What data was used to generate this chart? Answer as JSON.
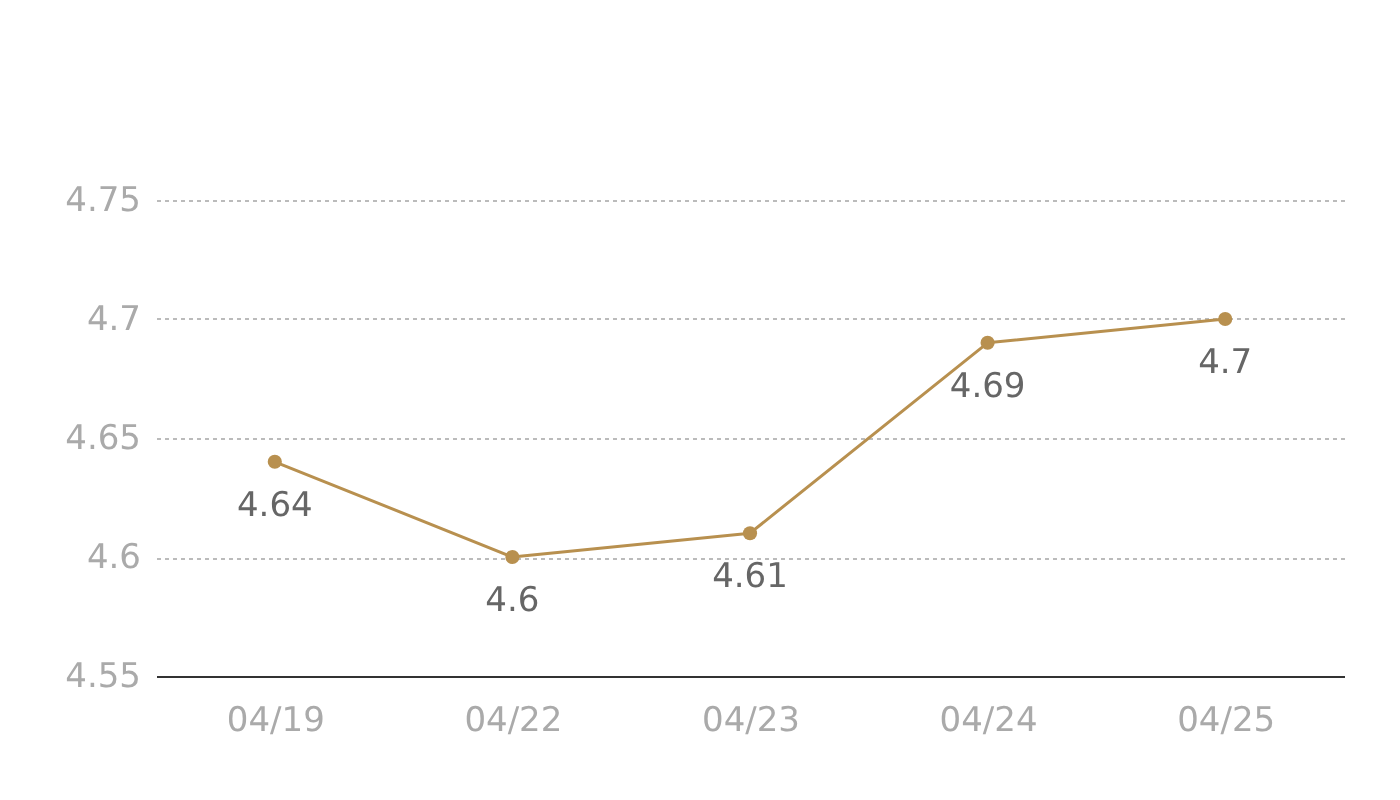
{
  "chart_data": {
    "type": "line",
    "categories": [
      "04/19",
      "04/22",
      "04/23",
      "04/24",
      "04/25"
    ],
    "series": [
      {
        "color": "#b8904f",
        "values": [
          4.64,
          4.6,
          4.61,
          4.69,
          4.7
        ]
      }
    ],
    "ylim": [
      4.55,
      4.75
    ],
    "yticks": [
      4.55,
      4.6,
      4.65,
      4.7,
      4.75
    ],
    "grid": "y",
    "marker": "circle",
    "line_style": "solid",
    "data_labels": true
  }
}
